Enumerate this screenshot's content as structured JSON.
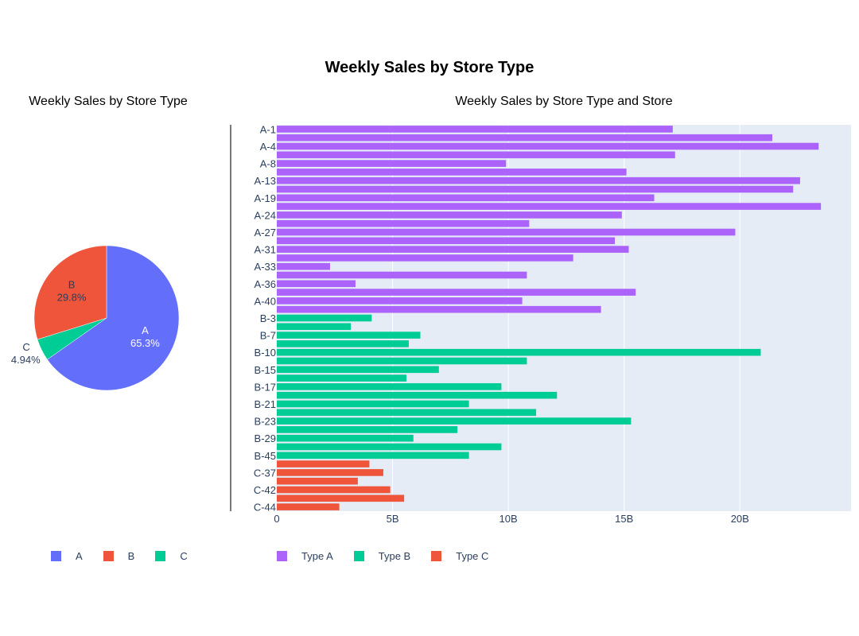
{
  "title": "Weekly Sales by Store Type",
  "colors": {
    "A": "#636efa",
    "B": "#ef553b",
    "C": "#00cc96",
    "typeA": "#ab63fa",
    "typeB": "#00cc96",
    "typeC": "#ef553b",
    "plot_bg": "#e5ecf6"
  },
  "chart_data": [
    {
      "type": "pie",
      "title": "Weekly Sales by Store Type",
      "slices": [
        {
          "label": "A",
          "value": 65.3,
          "text": "65.3%"
        },
        {
          "label": "C",
          "value": 4.94,
          "text": "4.94%"
        },
        {
          "label": "B",
          "value": 29.8,
          "text": "29.8%"
        }
      ],
      "legend": [
        "A",
        "B",
        "C"
      ],
      "legend_placement": "bottom"
    },
    {
      "type": "bar",
      "orientation": "horizontal",
      "title": "Weekly Sales by Store Type and Store",
      "x_ticks": [
        "0",
        "5B",
        "10B",
        "15B",
        "20B"
      ],
      "xlim": [
        0,
        24.8
      ],
      "x_unit_scale": "billions",
      "y_tick_labels": [
        "A-1",
        "A-4",
        "A-8",
        "A-13",
        "A-19",
        "A-24",
        "A-27",
        "A-31",
        "A-33",
        "A-36",
        "A-40",
        "B-3",
        "B-7",
        "B-10",
        "B-15",
        "B-17",
        "B-21",
        "B-23",
        "B-29",
        "B-45",
        "C-37",
        "C-42",
        "C-44"
      ],
      "bars": [
        {
          "type": "A",
          "label": "A-1",
          "value": 17.1
        },
        {
          "type": "A",
          "label": "",
          "value": 21.4
        },
        {
          "type": "A",
          "label": "A-4",
          "value": 23.4
        },
        {
          "type": "A",
          "label": "",
          "value": 17.2
        },
        {
          "type": "A",
          "label": "A-8",
          "value": 9.9
        },
        {
          "type": "A",
          "label": "",
          "value": 15.1
        },
        {
          "type": "A",
          "label": "A-13",
          "value": 22.6
        },
        {
          "type": "A",
          "label": "",
          "value": 22.3
        },
        {
          "type": "A",
          "label": "A-19",
          "value": 16.3
        },
        {
          "type": "A",
          "label": "",
          "value": 23.5
        },
        {
          "type": "A",
          "label": "A-24",
          "value": 14.9
        },
        {
          "type": "A",
          "label": "",
          "value": 10.9
        },
        {
          "type": "A",
          "label": "A-27",
          "value": 19.8
        },
        {
          "type": "A",
          "label": "",
          "value": 14.6
        },
        {
          "type": "A",
          "label": "A-31",
          "value": 15.2
        },
        {
          "type": "A",
          "label": "",
          "value": 12.8
        },
        {
          "type": "A",
          "label": "A-33",
          "value": 2.3
        },
        {
          "type": "A",
          "label": "",
          "value": 10.8
        },
        {
          "type": "A",
          "label": "A-36",
          "value": 3.4
        },
        {
          "type": "A",
          "label": "",
          "value": 15.5
        },
        {
          "type": "A",
          "label": "A-40",
          "value": 10.6
        },
        {
          "type": "A",
          "label": "",
          "value": 14.0
        },
        {
          "type": "B",
          "label": "B-3",
          "value": 4.1
        },
        {
          "type": "B",
          "label": "",
          "value": 3.2
        },
        {
          "type": "B",
          "label": "B-7",
          "value": 6.2
        },
        {
          "type": "B",
          "label": "",
          "value": 5.7
        },
        {
          "type": "B",
          "label": "B-10",
          "value": 20.9
        },
        {
          "type": "B",
          "label": "",
          "value": 10.8
        },
        {
          "type": "B",
          "label": "B-15",
          "value": 7.0
        },
        {
          "type": "B",
          "label": "",
          "value": 5.6
        },
        {
          "type": "B",
          "label": "B-17",
          "value": 9.7
        },
        {
          "type": "B",
          "label": "",
          "value": 12.1
        },
        {
          "type": "B",
          "label": "B-21",
          "value": 8.3
        },
        {
          "type": "B",
          "label": "",
          "value": 11.2
        },
        {
          "type": "B",
          "label": "B-23",
          "value": 15.3
        },
        {
          "type": "B",
          "label": "",
          "value": 7.8
        },
        {
          "type": "B",
          "label": "B-29",
          "value": 5.9
        },
        {
          "type": "B",
          "label": "",
          "value": 9.7
        },
        {
          "type": "B",
          "label": "B-45",
          "value": 8.3
        },
        {
          "type": "C",
          "label": "",
          "value": 4.0
        },
        {
          "type": "C",
          "label": "C-37",
          "value": 4.6
        },
        {
          "type": "C",
          "label": "",
          "value": 3.5
        },
        {
          "type": "C",
          "label": "C-42",
          "value": 4.9
        },
        {
          "type": "C",
          "label": "",
          "value": 5.5
        },
        {
          "type": "C",
          "label": "C-44",
          "value": 2.7
        }
      ],
      "legend": [
        "Type A",
        "Type B",
        "Type C"
      ],
      "legend_placement": "bottom",
      "grid": true
    }
  ]
}
